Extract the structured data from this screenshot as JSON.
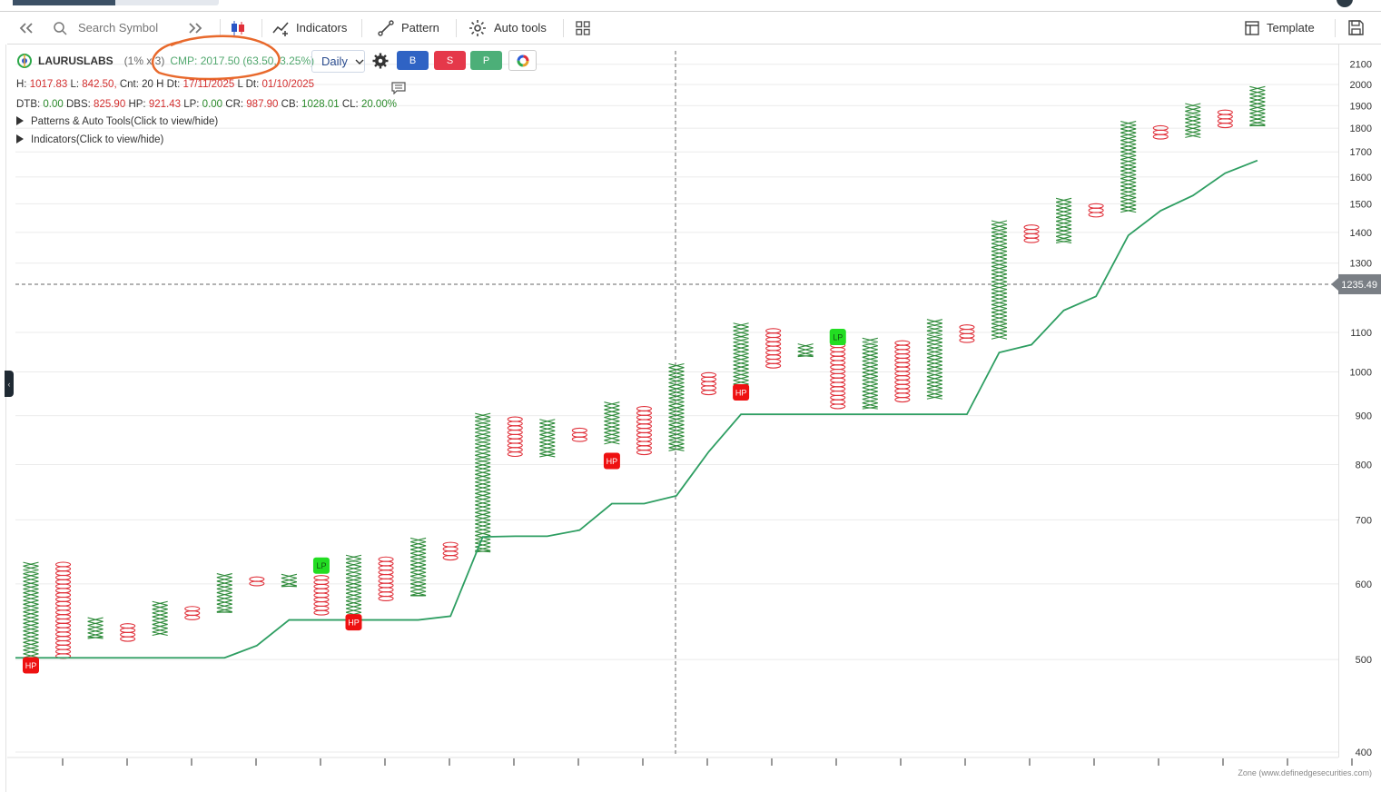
{
  "toolbar": {
    "search_placeholder": "Search Symbol",
    "indicators_label": "Indicators",
    "pattern_label": "Pattern",
    "autotools_label": "Auto tools",
    "template_label": "Template"
  },
  "header": {
    "symbol": "LAURUSLABS",
    "multiplier": "(1% x 3)",
    "cmp": "CMP: 2017.50 (63.50, 3.25%)",
    "interval": "Daily",
    "buttons": {
      "b": "B",
      "s": "S",
      "p": "P"
    }
  },
  "stats1": {
    "h_label": "H:",
    "h": "1017.83",
    "l_label": "L:",
    "l": "842.50,",
    "cnt": "Cnt: 20",
    "hdt_label": "H Dt:",
    "hdt": "17/11/2025",
    "ldt_label": "L Dt:",
    "ldt": "01/10/2025"
  },
  "stats2": {
    "dtb_label": "DTB:",
    "dtb": "0.00",
    "dbs_label": "DBS:",
    "dbs": "825.90",
    "hp_label": "HP:",
    "hp": "921.43",
    "lp_label": "LP:",
    "lp": "0.00",
    "cr_label": "CR:",
    "cr": "987.90",
    "cb_label": "CB:",
    "cb": "1028.01",
    "cl_label": "CL:",
    "cl": "20.00%"
  },
  "toggles": {
    "patterns": "Patterns & Auto Tools(Click to view/hide)",
    "indicators": "Indicators(Click to view/hide)"
  },
  "footer": "Zone (www.definedgesecurities.com)",
  "colors": {
    "x": "#2e8b3a",
    "o": "#e0303a",
    "line": "#2e9e62",
    "hp": "#ee1111",
    "lp": "#22dd22",
    "annotation": "#e8692c"
  },
  "chart_data": {
    "type": "point-and-figure",
    "y_scale": "log",
    "ylim": [
      400,
      2150
    ],
    "y_ticks": [
      400,
      500,
      600,
      700,
      800,
      900,
      1000,
      1100,
      1300,
      1400,
      1500,
      1600,
      1700,
      1800,
      1900,
      2000,
      2100
    ],
    "crosshair_price": "1235.49",
    "columns": [
      {
        "t": "X",
        "lo": 502,
        "hi": 632
      },
      {
        "t": "O",
        "lo": 502,
        "hi": 632
      },
      {
        "t": "X",
        "lo": 526,
        "hi": 553
      },
      {
        "t": "O",
        "lo": 522,
        "hi": 545
      },
      {
        "t": "X",
        "lo": 530,
        "hi": 575
      },
      {
        "t": "O",
        "lo": 550,
        "hi": 568
      },
      {
        "t": "X",
        "lo": 560,
        "hi": 615
      },
      {
        "t": "O",
        "lo": 593,
        "hi": 610
      },
      {
        "t": "X",
        "lo": 596,
        "hi": 614
      },
      {
        "t": "O",
        "lo": 557,
        "hi": 612
      },
      {
        "t": "X",
        "lo": 555,
        "hi": 643
      },
      {
        "t": "O",
        "lo": 575,
        "hi": 640
      },
      {
        "t": "X",
        "lo": 583,
        "hi": 670
      },
      {
        "t": "O",
        "lo": 630,
        "hi": 663
      },
      {
        "t": "X",
        "lo": 648,
        "hi": 905
      },
      {
        "t": "O",
        "lo": 812,
        "hi": 897
      },
      {
        "t": "X",
        "lo": 815,
        "hi": 892
      },
      {
        "t": "O",
        "lo": 842,
        "hi": 873
      },
      {
        "t": "X",
        "lo": 840,
        "hi": 930
      },
      {
        "t": "O",
        "lo": 818,
        "hi": 920
      },
      {
        "t": "X",
        "lo": 827,
        "hi": 1020
      },
      {
        "t": "O",
        "lo": 945,
        "hi": 998
      },
      {
        "t": "X",
        "lo": 960,
        "hi": 1125
      },
      {
        "t": "O",
        "lo": 1010,
        "hi": 1110
      },
      {
        "t": "X",
        "lo": 1038,
        "hi": 1070
      },
      {
        "t": "O",
        "lo": 908,
        "hi": 1072
      },
      {
        "t": "X",
        "lo": 915,
        "hi": 1085
      },
      {
        "t": "O",
        "lo": 922,
        "hi": 1078
      },
      {
        "t": "X",
        "lo": 937,
        "hi": 1135
      },
      {
        "t": "O",
        "lo": 1075,
        "hi": 1120
      },
      {
        "t": "X",
        "lo": 1082,
        "hi": 1440
      },
      {
        "t": "O",
        "lo": 1355,
        "hi": 1425
      },
      {
        "t": "X",
        "lo": 1365,
        "hi": 1520
      },
      {
        "t": "O",
        "lo": 1440,
        "hi": 1500
      },
      {
        "t": "X",
        "lo": 1470,
        "hi": 1830
      },
      {
        "t": "O",
        "lo": 1750,
        "hi": 1810
      },
      {
        "t": "X",
        "lo": 1760,
        "hi": 1910
      },
      {
        "t": "O",
        "lo": 1790,
        "hi": 1880
      },
      {
        "t": "X",
        "lo": 1810,
        "hi": 1990
      }
    ],
    "line": [
      502,
      502,
      502,
      502,
      502,
      502,
      502,
      517,
      550,
      550,
      550,
      550,
      550,
      555,
      672,
      673,
      673,
      683,
      728,
      728,
      742,
      825,
      903,
      903,
      903,
      903,
      903,
      903,
      903,
      903,
      1048,
      1068,
      1160,
      1200,
      1390,
      1475,
      1530,
      1615,
      1665
    ],
    "markers": [
      {
        "label": "HP",
        "col": 0,
        "price": 493
      },
      {
        "label": "LP",
        "col": 9,
        "price": 627
      },
      {
        "label": "HP",
        "col": 10,
        "price": 547
      },
      {
        "label": "HP",
        "col": 18,
        "price": 807
      },
      {
        "label": "HP",
        "col": 22,
        "price": 952
      },
      {
        "label": "LP",
        "col": 25,
        "price": 1088
      }
    ]
  }
}
